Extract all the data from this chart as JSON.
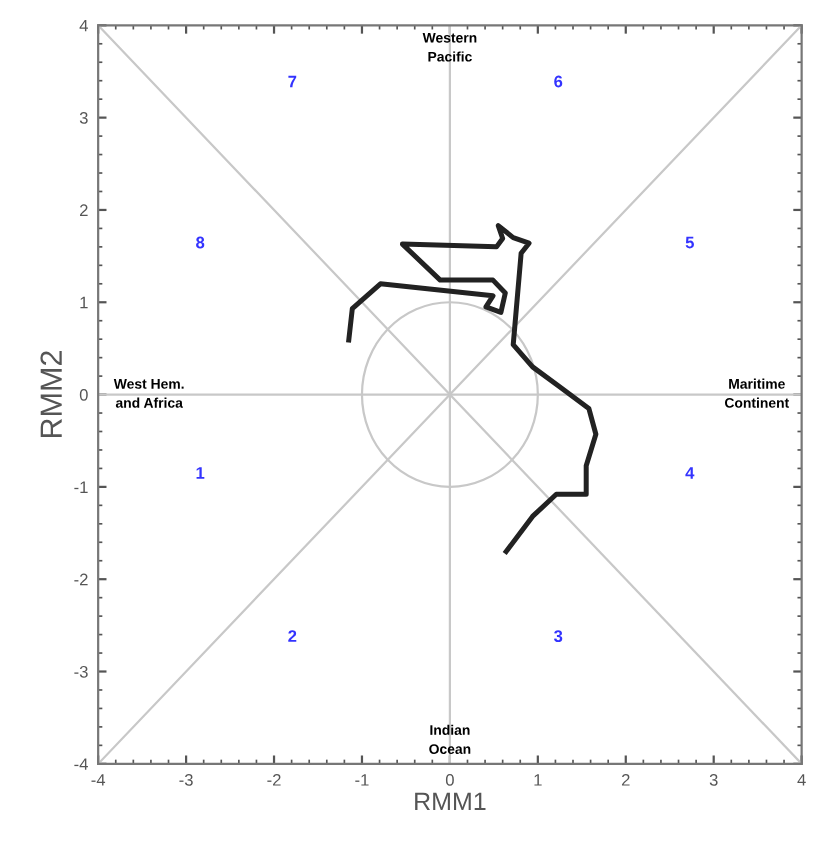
{
  "chart_data": {
    "type": "line",
    "xlabel": "RMM1",
    "ylabel": "RMM2",
    "xlim": [
      -4,
      4
    ],
    "ylim": [
      -4,
      4
    ],
    "xticks": [
      -4,
      -3,
      -2,
      -1,
      0,
      1,
      2,
      3,
      4
    ],
    "yticks": [
      -4,
      -3,
      -2,
      -1,
      0,
      1,
      2,
      3,
      4
    ],
    "grid": false,
    "legend": false,
    "marker": "none",
    "line_style": "solid",
    "series": [
      {
        "color": "#c8c8c8",
        "x": [
          -4,
          4
        ],
        "values": [
          -4,
          4
        ]
      },
      {
        "color": "#c8c8c8",
        "x": [
          -4,
          4
        ],
        "values": [
          4,
          -4
        ]
      },
      {
        "color": "#c8c8c8",
        "x": [
          0,
          0
        ],
        "values": [
          -4,
          4
        ]
      },
      {
        "color": "#c8c8c8",
        "x": [
          -4,
          4
        ],
        "values": [
          0,
          0
        ]
      },
      {
        "color": "#222222",
        "x": [
          0.64,
          0.94,
          1.21,
          1.55,
          1.55,
          1.66,
          1.58,
          1.24,
          0.94,
          0.72,
          0.81,
          0.9,
          0.72,
          0.55,
          0.6,
          0.53,
          -0.54,
          -0.11,
          0.49,
          0.63,
          0.58,
          0.41,
          0.49,
          -0.79,
          -1.11,
          -1.15
        ],
        "values": [
          -1.7,
          -1.32,
          -1.08,
          -1.08,
          -0.77,
          -0.43,
          -0.15,
          0.09,
          0.3,
          0.54,
          1.53,
          1.64,
          1.7,
          1.83,
          1.69,
          1.6,
          1.63,
          1.24,
          1.24,
          1.1,
          0.89,
          0.95,
          1.07,
          1.2,
          0.93,
          0.59
        ]
      }
    ],
    "annotations": [
      "1",
      "2",
      "3",
      "4",
      "5",
      "6",
      "7",
      "8",
      {
        "text": "Western\nPacific",
        "x": 0,
        "y": 3.75
      },
      {
        "text": "Indian\nOcean",
        "x": 0,
        "y": -3.75
      },
      {
        "text": "West Hem.\nand Africa",
        "x": -3.42,
        "y": 0
      },
      {
        "text": "Maritime\nContinent",
        "x": 3.49,
        "y": 0
      }
    ]
  }
}
